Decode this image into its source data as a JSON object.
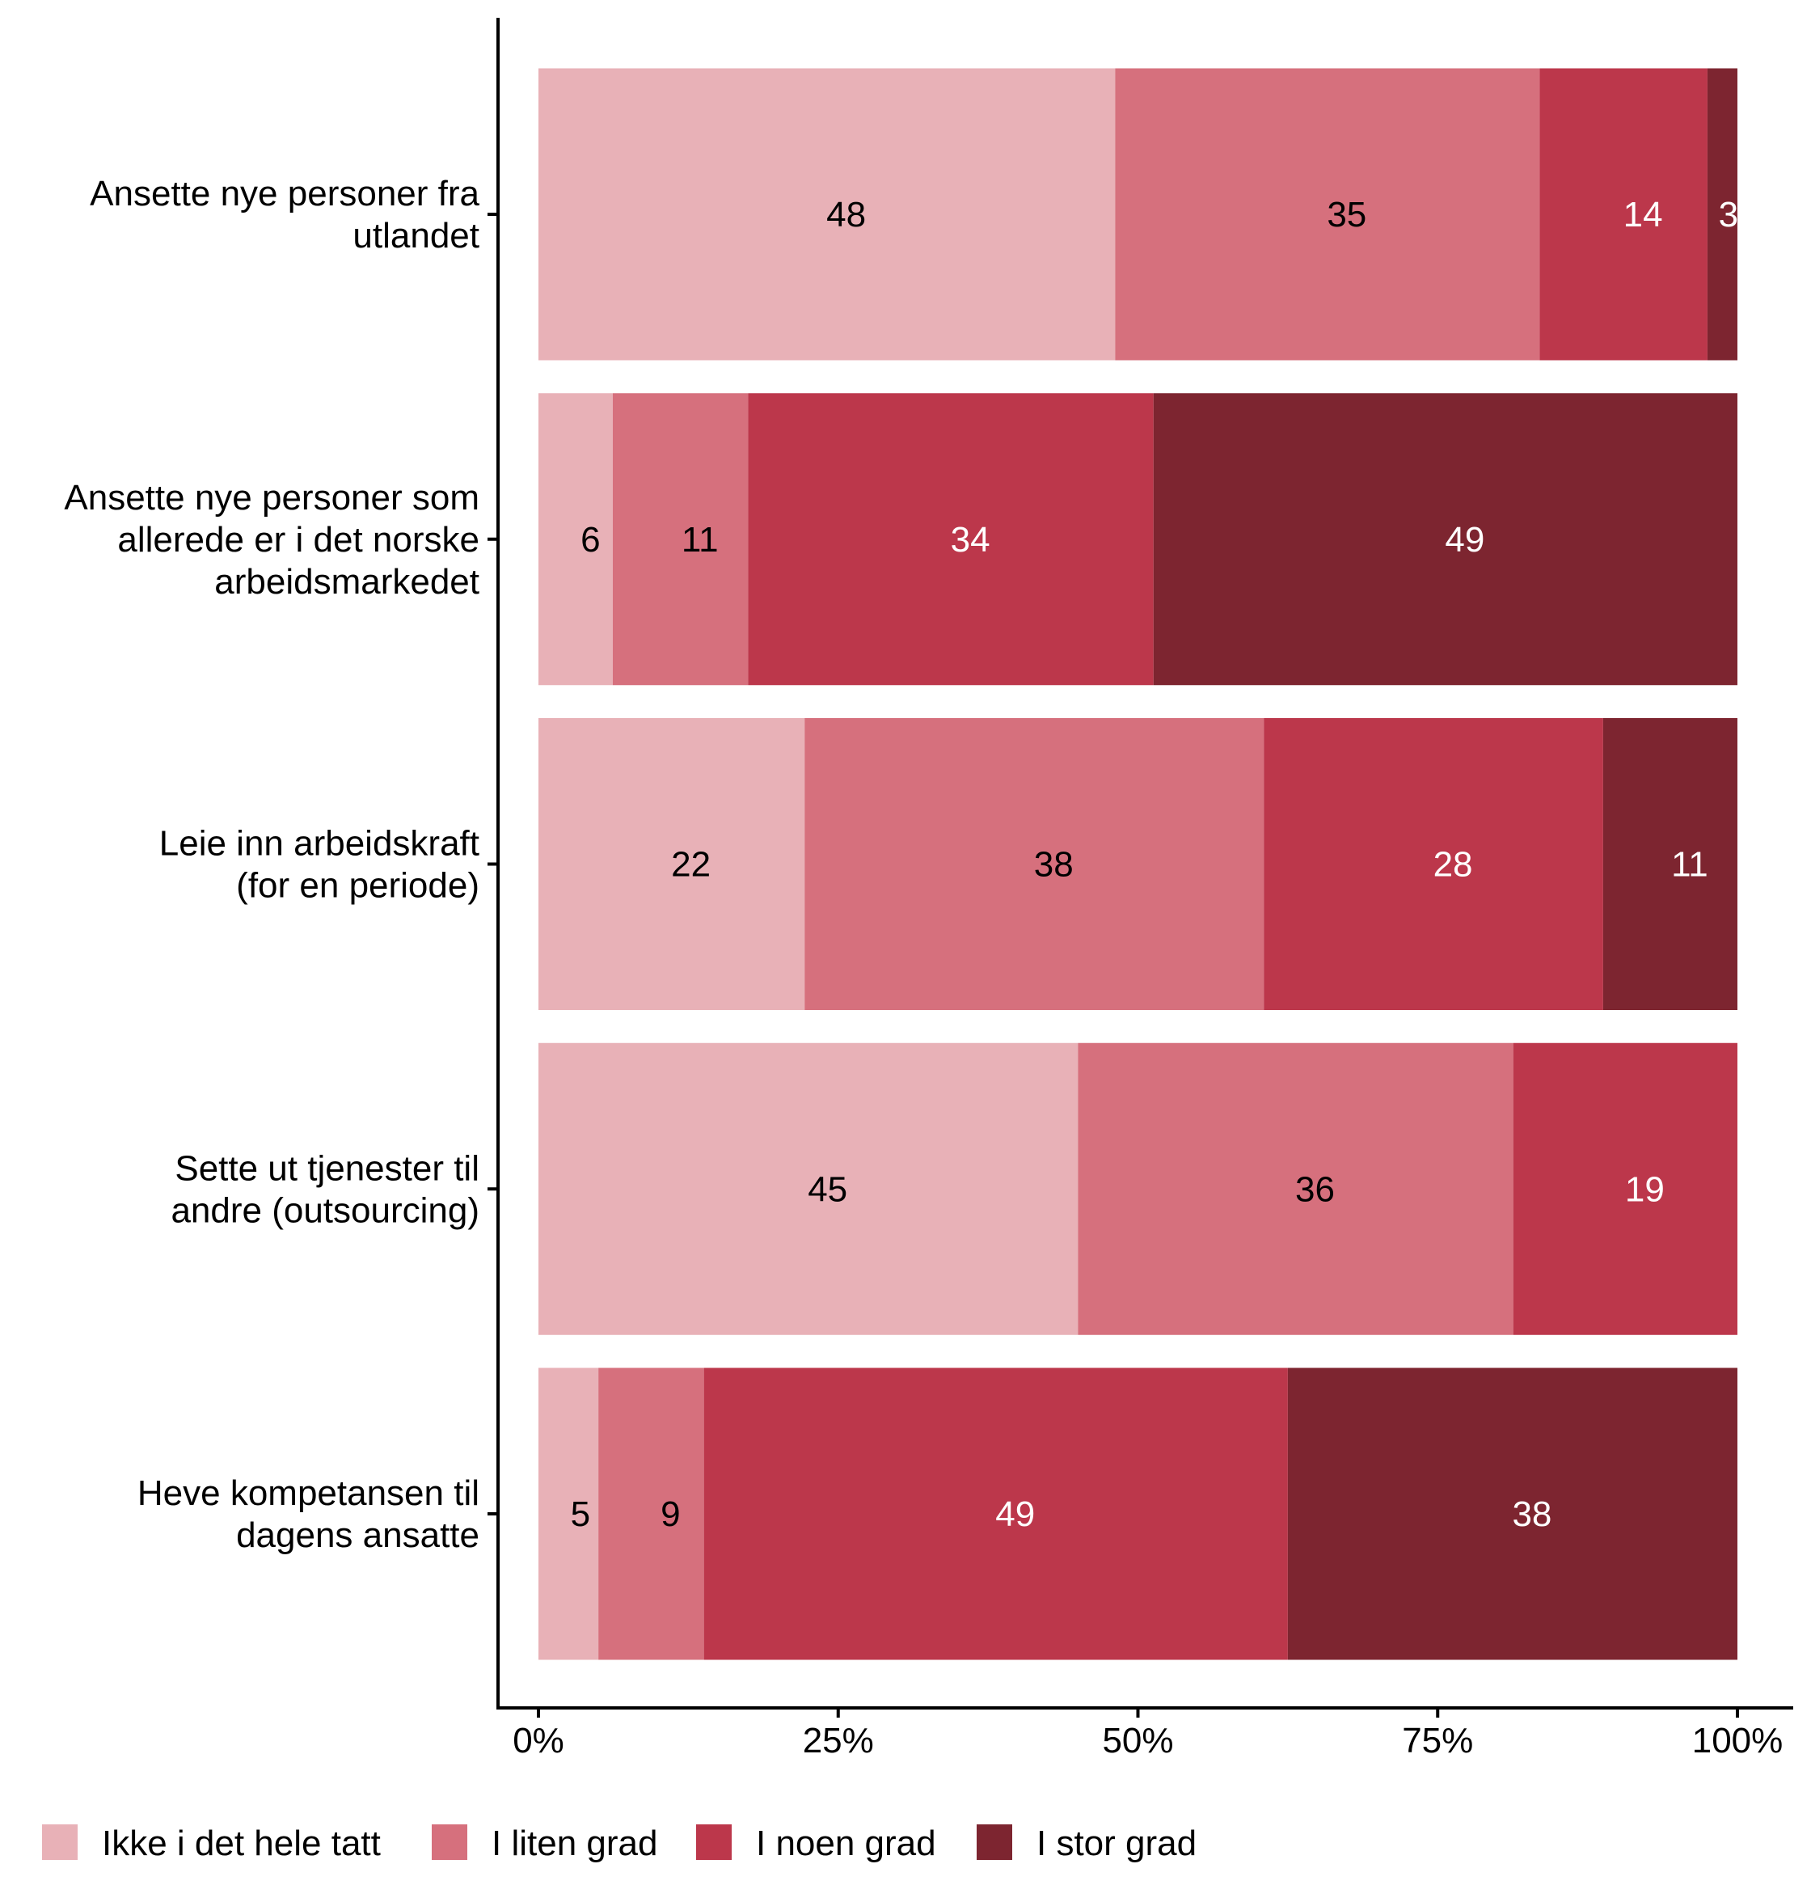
{
  "chart_data": {
    "type": "bar",
    "orientation": "horizontal",
    "stacked": true,
    "title": "",
    "xlabel": "",
    "ylabel": "",
    "xlim": [
      0,
      100
    ],
    "x_ticks": [
      "0%",
      "25%",
      "50%",
      "75%",
      "100%"
    ],
    "x_tick_values": [
      0,
      25,
      50,
      75,
      100
    ],
    "grid": false,
    "legend_position": "bottom",
    "categories": [
      [
        "Ansette nye personer fra",
        "utlandet"
      ],
      [
        "Ansette nye personer som",
        "allerede er i det norske",
        "arbeidsmarkedet"
      ],
      [
        "Leie inn arbeidskraft",
        "(for en periode)"
      ],
      [
        "Sette ut tjenester til",
        "andre (outsourcing)"
      ],
      [
        "Heve kompetansen til",
        "dagens ansatte"
      ]
    ],
    "series": [
      {
        "name": "Ikke i det hele tatt",
        "color": "#E8B1B7",
        "label_color": "#000000",
        "values": [
          48.1,
          6.2,
          22.2,
          45.0,
          5.0
        ],
        "labels": [
          "48",
          "6",
          "22",
          "45",
          "5"
        ]
      },
      {
        "name": "I liten grad",
        "color": "#D6707D",
        "label_color": "#000000",
        "values": [
          35.4,
          11.3,
          38.3,
          36.3,
          8.8
        ],
        "labels": [
          "35",
          "11",
          "38",
          "36",
          "9"
        ]
      },
      {
        "name": "I noen grad",
        "color": "#BC374B",
        "label_color": "#FFFFFF",
        "values": [
          14.0,
          33.8,
          28.3,
          18.7,
          48.7
        ],
        "labels": [
          "14",
          "34",
          "28",
          "19",
          "49"
        ]
      },
      {
        "name": "I stor grad",
        "color": "#7D2530",
        "label_color": "#FFFFFF",
        "values": [
          2.5,
          48.7,
          11.2,
          0,
          37.5
        ],
        "labels": [
          "3",
          "49",
          "11",
          "",
          "38"
        ]
      }
    ]
  }
}
